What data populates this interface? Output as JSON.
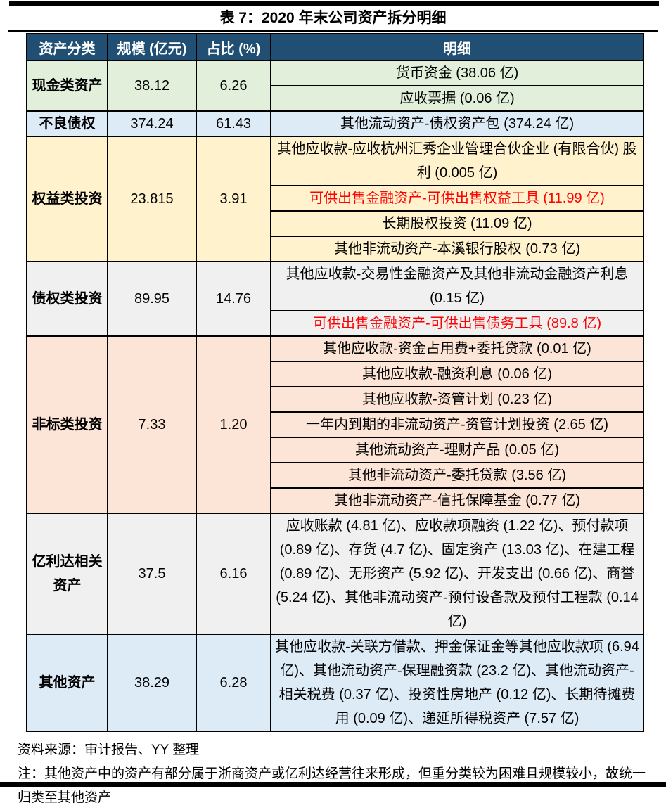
{
  "title": "表 7：2020 年末公司资产拆分明细",
  "colors": {
    "header_bg": "#204F73",
    "header_text": "#FFFFFF",
    "row_green": "#E2EFDA",
    "row_blue": "#DDEBF7",
    "row_yellow": "#FFF2CC",
    "row_gray": "#F0F0F0",
    "row_pink": "#FCE4D6",
    "highlight_red": "#FF0000",
    "border": "#000000"
  },
  "table": {
    "headers": [
      "资产分类",
      "规模 (亿元)",
      "占比 (%)",
      "明细"
    ],
    "blocks": [
      {
        "category": "现金类资产",
        "scale": "38.12",
        "pct": "6.26",
        "details": [
          {
            "text": "货币资金 (38.06 亿)"
          },
          {
            "text": "应收票据 (0.06 亿)"
          }
        ]
      },
      {
        "category": "不良债权",
        "scale": "374.24",
        "pct": "61.43",
        "details": [
          {
            "text": "其他流动资产-债权资产包 (374.24 亿)"
          }
        ]
      },
      {
        "category": "权益类投资",
        "scale": "23.815",
        "pct": "3.91",
        "details": [
          {
            "text": "其他应收款-应收杭州汇秀企业管理合伙企业 (有限合伙) 股利 (0.005 亿)"
          },
          {
            "text": "可供出售金融资产-可供出售权益工具 (11.99 亿)",
            "highlight": "red"
          },
          {
            "text": "长期股权投资 (11.09 亿)"
          },
          {
            "text": "其他非流动资产-本溪银行股权 (0.73 亿)"
          }
        ]
      },
      {
        "category": "债权类投资",
        "scale": "89.95",
        "pct": "14.76",
        "details": [
          {
            "text": "其他应收款-交易性金融资产及其他非流动金融资产利息 (0.15 亿)"
          },
          {
            "text": "可供出售金融资产-可供出售债务工具 (89.8 亿)",
            "highlight": "red"
          }
        ]
      },
      {
        "category": "非标类投资",
        "scale": "7.33",
        "pct": "1.20",
        "details": [
          {
            "text": "其他应收款-资金占用费+委托贷款 (0.01 亿)"
          },
          {
            "text": "其他应收款-融资利息 (0.06 亿)"
          },
          {
            "text": "其他应收款-资管计划 (0.23 亿)"
          },
          {
            "text": "一年内到期的非流动资产-资管计划投资 (2.65 亿)"
          },
          {
            "text": "其他流动资产-理财产品 (0.05 亿)"
          },
          {
            "text": "其他非流动资产-委托贷款 (3.56 亿)"
          },
          {
            "text": "其他非流动资产-信托保障基金 (0.77 亿)"
          }
        ]
      },
      {
        "category": "亿利达相关资产",
        "scale": "37.5",
        "pct": "6.16",
        "details": [
          {
            "text": "应收账款 (4.81 亿)、应收款项融资 (1.22 亿)、预付款项 (0.89 亿)、存货 (4.7 亿)、固定资产 (13.03 亿)、在建工程 (0.89 亿)、无形资产 (5.92 亿)、开发支出 (0.66 亿)、商誉 (5.24 亿)、其他非流动资产-预付设备款及预付工程款 (0.14 亿)"
          }
        ]
      },
      {
        "category": "其他资产",
        "scale": "38.29",
        "pct": "6.28",
        "details": [
          {
            "text": "其他应收款-关联方借款、押金保证金等其他应收款项 (6.94 亿)、其他流动资产-保理融资款 (23.2 亿)、其他流动资产-相关税费 (0.37 亿)、投资性房地产 (0.12 亿)、长期待摊费用 (0.09 亿)、递延所得税资产 (7.57 亿)"
          }
        ]
      }
    ]
  },
  "footer": {
    "source": "资料来源：审计报告、YY 整理",
    "note": "注：其他资产中的资产有部分属于浙商资产或亿利达经营往来形成，但重分类较为困难且规模较小，故统一归类至其他资产"
  }
}
